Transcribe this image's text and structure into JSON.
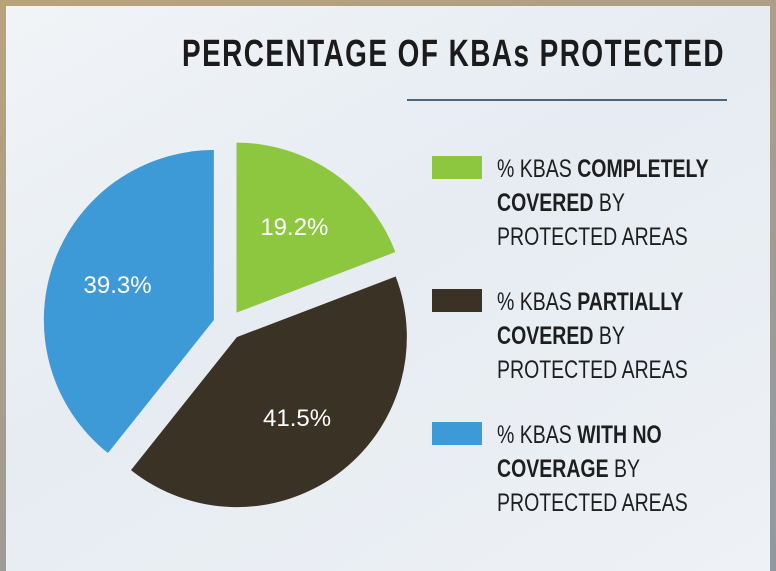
{
  "chart_data": {
    "type": "pie",
    "title": "PERCENTAGE OF KBAs PROTECTED",
    "series": [
      {
        "name": "% KBAS COMPLETELY COVERED BY PROTECTED AREAS",
        "emphasis": "COMPLETELY COVERED",
        "color": "#8dc63f",
        "values": [
          19.2
        ],
        "value_labels": [
          "19.2%"
        ]
      },
      {
        "name": "% KBAS PARTIALLY COVERED BY PROTECTED AREAS",
        "emphasis": "PARTIALLY COVERED",
        "color": "#3b3226",
        "values": [
          41.5
        ],
        "value_labels": [
          "41.5%"
        ]
      },
      {
        "name": "% KBAS WITH NO COVERAGE BY PROTECTED AREAS",
        "emphasis": "WITH NO COVERAGE",
        "color": "#3d9ad6",
        "values": [
          39.3
        ],
        "value_labels": [
          "39.3%"
        ]
      }
    ],
    "legend": "right",
    "exploded": true
  }
}
